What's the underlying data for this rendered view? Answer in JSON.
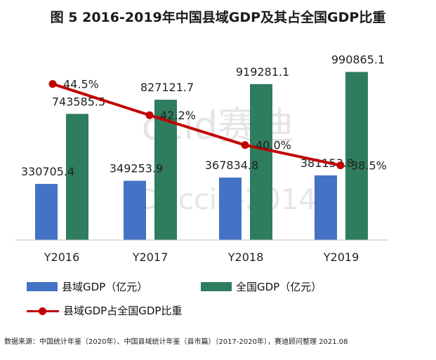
{
  "title": "图 5  2016-2019年中国县域GDP及其占全国GDP比重",
  "chart_data": {
    "type": "bar",
    "categories": [
      "Y2016",
      "Y2017",
      "Y2018",
      "Y2019"
    ],
    "series": [
      {
        "name": "县域GDP（亿元）",
        "values": [
          330705.4,
          349253.9,
          367834.8,
          381153.8
        ],
        "color": "#4472C4"
      },
      {
        "name": "全国GDP（亿元）",
        "values": [
          743585.5,
          827121.7,
          919281.1,
          990865.1
        ],
        "color": "#2E7D5E"
      }
    ],
    "line_series": {
      "name": "县域GDP占全国GDP比重",
      "values": [
        44.5,
        42.2,
        40.0,
        38.5
      ],
      "labels": [
        "44.5%",
        "42.2%",
        "40.0%",
        "38.5%"
      ],
      "color": "#C00000"
    },
    "bar_labels": {
      "county": [
        "330705.4",
        "349253.9",
        "367834.8",
        "381153.8"
      ],
      "national": [
        "743585.5",
        "827121.7",
        "919281.1",
        "990865.1"
      ]
    },
    "ylim": [
      0,
      1200000
    ],
    "line_ylim": [
      33,
      48
    ],
    "grid": false,
    "legend": "bottom"
  },
  "watermarks": [
    "ccid赛迪",
    "ID: ccid-2014"
  ],
  "source": "数据来源：中国统计年鉴（2020年）、中国县域统计年鉴（县市篇）（2017-2020年），赛迪顾问整理    2021.08"
}
